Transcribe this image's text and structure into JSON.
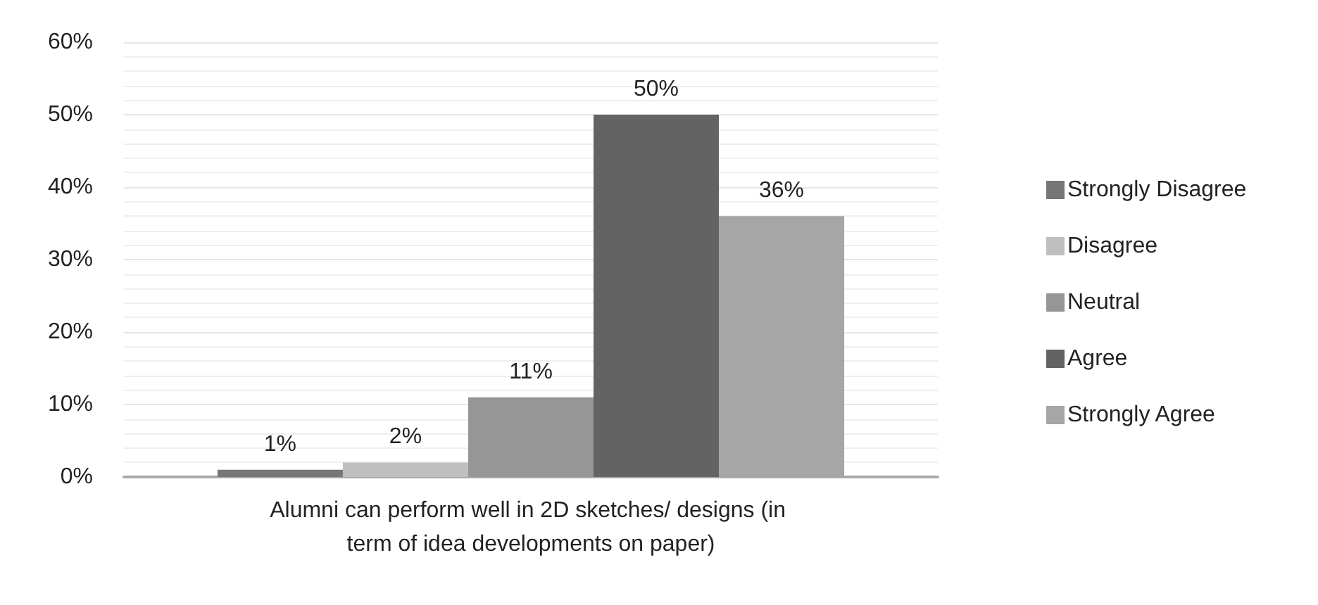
{
  "chart_data": {
    "type": "bar",
    "categories": [
      "Alumni can perform well in 2D sketches/ designs (in term of idea developments on paper)"
    ],
    "series": [
      {
        "name": "Strongly Disagree",
        "color": "#767676",
        "values": [
          1
        ],
        "value_labels": [
          "1%"
        ]
      },
      {
        "name": "Disagree",
        "color": "#bfbfbf",
        "values": [
          2
        ],
        "value_labels": [
          "2%"
        ]
      },
      {
        "name": "Neutral",
        "color": "#969696",
        "values": [
          11
        ],
        "value_labels": [
          "11%"
        ]
      },
      {
        "name": "Agree",
        "color": "#636363",
        "values": [
          50
        ],
        "value_labels": [
          "50%"
        ]
      },
      {
        "name": "Strongly Agree",
        "color": "#a6a6a6",
        "values": [
          36
        ],
        "value_labels": [
          "36%"
        ]
      }
    ],
    "ylim": [
      0,
      60
    ],
    "yticks": [
      {
        "value": 0,
        "label": "0%"
      },
      {
        "value": 10,
        "label": "10%"
      },
      {
        "value": 20,
        "label": "20%"
      },
      {
        "value": 30,
        "label": "30%"
      },
      {
        "value": 40,
        "label": "40%"
      },
      {
        "value": 50,
        "label": "50%"
      },
      {
        "value": 60,
        "label": "60%"
      }
    ],
    "grid": true,
    "legend": "right"
  }
}
